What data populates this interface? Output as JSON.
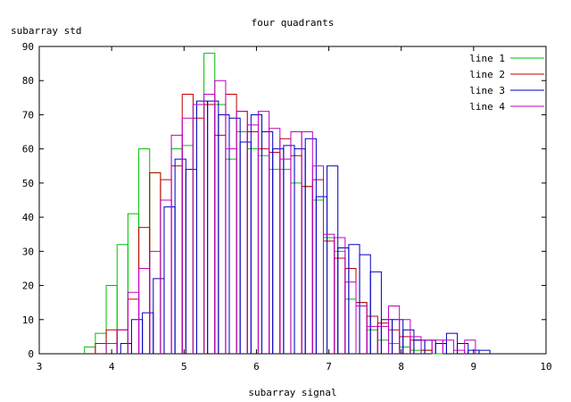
{
  "chart_data": {
    "type": "bar",
    "title": "four quadrants",
    "xlabel": "subarray signal",
    "ylabel": "subarray std",
    "xlim": [
      3,
      10
    ],
    "ylim": [
      0,
      90
    ],
    "xticks": [
      3,
      4,
      5,
      6,
      7,
      8,
      9,
      10
    ],
    "yticks": [
      0,
      10,
      20,
      30,
      40,
      50,
      60,
      70,
      80,
      90
    ],
    "bin_width": 0.15,
    "legend_position": "top-right",
    "series": [
      {
        "name": "line 1",
        "color": "#00c000",
        "x": [
          3.7,
          3.85,
          4.0,
          4.15,
          4.3,
          4.45,
          4.6,
          4.75,
          4.9,
          5.05,
          5.2,
          5.35,
          5.5,
          5.65,
          5.8,
          5.95,
          6.1,
          6.25,
          6.4,
          6.55,
          6.7,
          6.85,
          7.0,
          7.15,
          7.3,
          7.45,
          7.6,
          7.75,
          7.9,
          8.05,
          8.2,
          8.35,
          8.5
        ],
        "y": [
          2,
          6,
          20,
          32,
          41,
          60,
          53,
          45,
          60,
          61,
          73,
          88,
          73,
          57,
          65,
          60,
          58,
          54,
          54,
          50,
          49,
          45,
          34,
          30,
          16,
          15,
          7,
          4,
          3,
          2,
          1,
          1,
          0
        ]
      },
      {
        "name": "line 2",
        "color": "#c00000",
        "x": [
          3.85,
          4.0,
          4.15,
          4.3,
          4.45,
          4.6,
          4.75,
          4.9,
          5.05,
          5.2,
          5.35,
          5.5,
          5.65,
          5.8,
          5.95,
          6.1,
          6.25,
          6.4,
          6.55,
          6.7,
          6.85,
          7.0,
          7.15,
          7.3,
          7.45,
          7.6,
          7.75,
          7.9,
          8.05,
          8.2,
          8.35
        ],
        "y": [
          3,
          7,
          7,
          16,
          37,
          53,
          51,
          55,
          76,
          69,
          73,
          64,
          76,
          71,
          65,
          60,
          59,
          63,
          58,
          49,
          51,
          33,
          28,
          25,
          15,
          11,
          9,
          7,
          5,
          4,
          1
        ]
      },
      {
        "name": "line 3",
        "color": "#0000c0",
        "x": [
          4.2,
          4.35,
          4.5,
          4.65,
          4.8,
          4.95,
          5.1,
          5.25,
          5.4,
          5.55,
          5.7,
          5.85,
          6.0,
          6.15,
          6.3,
          6.45,
          6.6,
          6.75,
          6.9,
          7.05,
          7.2,
          7.35,
          7.5,
          7.65,
          7.8,
          7.95,
          8.1,
          8.25,
          8.4,
          8.55,
          8.7,
          8.85,
          9.0,
          9.15
        ],
        "y": [
          3,
          10,
          12,
          22,
          43,
          57,
          54,
          74,
          74,
          70,
          69,
          62,
          70,
          65,
          60,
          61,
          60,
          63,
          46,
          55,
          31,
          32,
          29,
          24,
          10,
          10,
          7,
          4,
          4,
          3,
          6,
          3,
          1,
          1
        ]
      },
      {
        "name": "line 4",
        "color": "#c000c0",
        "x": [
          4.0,
          4.15,
          4.3,
          4.45,
          4.6,
          4.75,
          4.9,
          5.05,
          5.2,
          5.35,
          5.5,
          5.65,
          5.8,
          5.95,
          6.1,
          6.25,
          6.4,
          6.55,
          6.7,
          6.85,
          7.0,
          7.15,
          7.3,
          7.45,
          7.6,
          7.75,
          7.9,
          8.05,
          8.2,
          8.35,
          8.5,
          8.65,
          8.8,
          8.95
        ],
        "y": [
          3,
          7,
          18,
          25,
          30,
          45,
          64,
          69,
          73,
          76,
          80,
          60,
          71,
          67,
          71,
          66,
          57,
          65,
          65,
          55,
          35,
          34,
          21,
          14,
          8,
          8,
          14,
          10,
          5,
          4,
          4,
          4,
          1,
          4
        ]
      }
    ]
  }
}
